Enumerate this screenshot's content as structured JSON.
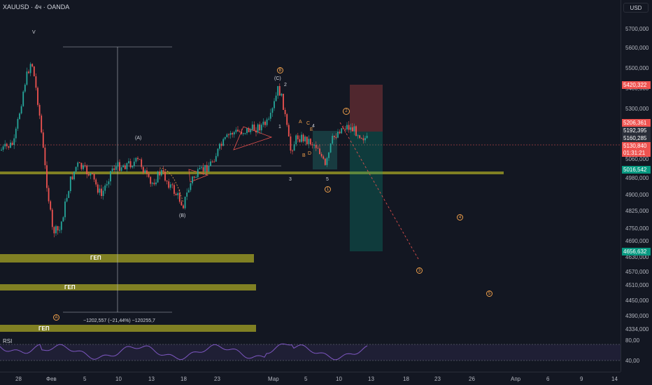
{
  "header": {
    "symbol": "XAUUSD · 4ч · OANDA",
    "currency_button": "USD"
  },
  "colors": {
    "background": "#131722",
    "bull": "#26a69a",
    "bear": "#ef5350",
    "zone_olive": "#808023",
    "rsi_line": "#7e57c2",
    "label_orange": "#f0a04b"
  },
  "price_ticks": [
    "5700,000",
    "5600,000",
    "5500,000",
    "5400,000",
    "5300,000",
    "5060,000",
    "4980,000",
    "4900,000",
    "4825,000",
    "4750,000",
    "4690,000",
    "4630,000",
    "4570,000",
    "4510,000",
    "4450,000",
    "4390,000",
    "4334,000"
  ],
  "price_tags": [
    {
      "label": "5420,322",
      "color": "#ef5350"
    },
    {
      "label": "5206,361",
      "color": "#ef5350"
    },
    {
      "label": "5192,395",
      "color": "#2a2e39"
    },
    {
      "label": "5160,285",
      "color": "#2a2e39"
    },
    {
      "label": "5130,840",
      "color": "#ef5350"
    },
    {
      "label": "01:31:21",
      "color": "#ef5350"
    },
    {
      "label": "5016,542",
      "color": "#089981"
    },
    {
      "label": "4656,632",
      "color": "#089981"
    }
  ],
  "rsi": {
    "label": "RSI",
    "ticks": [
      "80,00",
      "40,00"
    ]
  },
  "time_ticks": [
    "28",
    "Фев",
    "5",
    "10",
    "13",
    "18",
    "23",
    "Мар",
    "5",
    "10",
    "13",
    "18",
    "23",
    "26",
    "Апр",
    "6",
    "9",
    "14"
  ],
  "annotations": {
    "wave_v": "V",
    "wave_a_paren": "(A)",
    "wave_b_paren": "(B)",
    "wave_c_paren": "(C)",
    "wave_b_circ": "B",
    "wave_a_circ": "A",
    "n1": "1",
    "n2": "2",
    "n3": "3",
    "n4": "4",
    "n5": "5",
    "sub_a": "A",
    "sub_b": "B",
    "sub_c": "C",
    "sub_d": "D",
    "sub_e": "E",
    "c1": "1",
    "c2": "2",
    "c3": "3",
    "c4": "4",
    "c5": "5",
    "measure": "−1202,557 (−21,44%) −120255,7",
    "gap1": "ГЕП",
    "gap2": "ГЕП",
    "gap3": "ГЕП"
  }
}
